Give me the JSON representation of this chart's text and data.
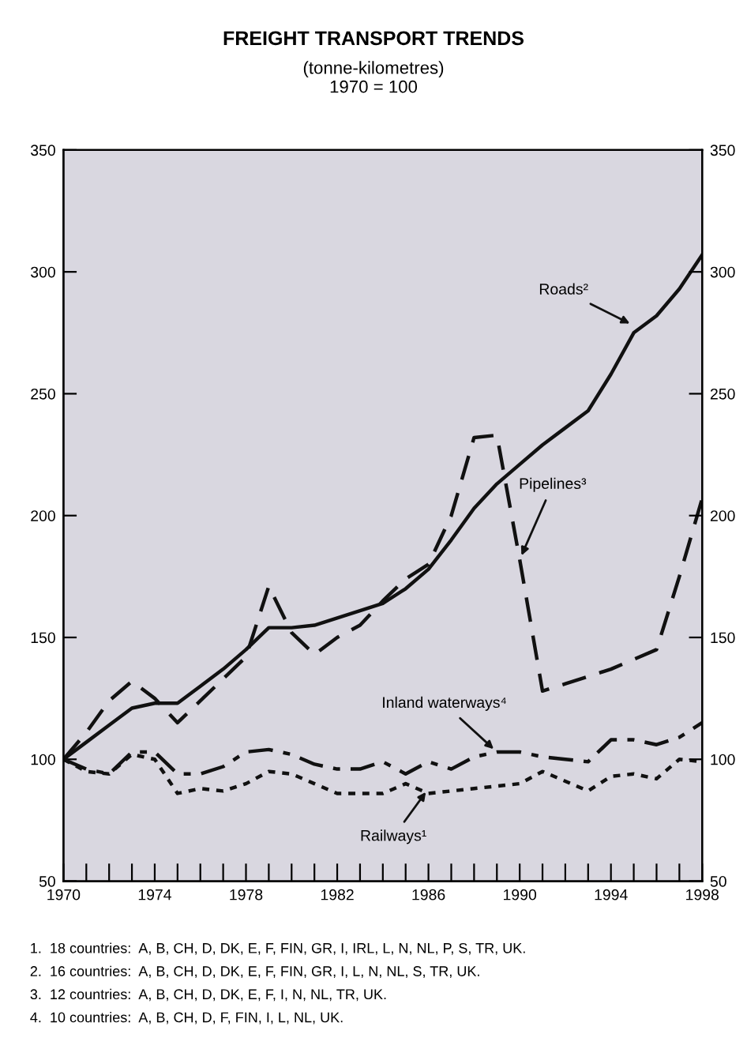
{
  "chart_data": {
    "type": "line",
    "title": "FREIGHT TRANSPORT TRENDS",
    "subtitle": "(tonne-kilometres)\n1970 = 100",
    "x": [
      1970,
      1971,
      1972,
      1973,
      1974,
      1975,
      1976,
      1977,
      1978,
      1979,
      1980,
      1981,
      1982,
      1983,
      1984,
      1985,
      1986,
      1987,
      1988,
      1989,
      1990,
      1991,
      1992,
      1993,
      1994,
      1995,
      1996,
      1997,
      1998
    ],
    "series": [
      {
        "color": "#111111",
        "line_style": "solid",
        "values": [
          100,
          107,
          114,
          121,
          123,
          123,
          130,
          137,
          145,
          154,
          154,
          155,
          158,
          161,
          164,
          170,
          178,
          190,
          203,
          213,
          221,
          229,
          236,
          243,
          258,
          275,
          282,
          293,
          307
        ]
      },
      {
        "color": "#111111",
        "line_style": "dashed",
        "values": [
          100,
          111,
          124,
          132,
          125,
          115,
          124,
          133,
          142,
          171,
          152,
          143,
          150,
          155,
          165,
          174,
          180,
          200,
          232,
          233,
          182,
          128,
          131,
          134,
          137,
          141,
          145,
          175,
          207
        ]
      },
      {
        "color": "#111111",
        "line_style": "dashdot",
        "values": [
          100,
          96,
          94,
          103,
          103,
          94,
          94,
          97,
          103,
          104,
          102,
          98,
          96,
          96,
          99,
          94,
          99,
          96,
          101,
          103,
          103,
          101,
          100,
          99,
          108,
          108,
          106,
          109,
          115
        ]
      },
      {
        "color": "#111111",
        "line_style": "dotted",
        "values": [
          100,
          95,
          94,
          102,
          100,
          86,
          88,
          87,
          90,
          95,
          94,
          90,
          86,
          86,
          86,
          90,
          86,
          87,
          88,
          89,
          90,
          95,
          91,
          87,
          93,
          94,
          92,
          100,
          99
        ]
      }
    ],
    "xlim": [
      1970,
      1998
    ],
    "xticks": [
      1970,
      {
        "value": 1971,
        "label": null
      },
      {
        "value": 1972,
        "label": null
      },
      {
        "value": 1973,
        "label": null
      },
      1974,
      {
        "value": 1975,
        "label": null
      },
      {
        "value": 1976,
        "label": null
      },
      {
        "value": 1977,
        "label": null
      },
      1978,
      {
        "value": 1979,
        "label": null
      },
      {
        "value": 1980,
        "label": null
      },
      {
        "value": 1981,
        "label": null
      },
      1982,
      {
        "value": 1983,
        "label": null
      },
      {
        "value": 1984,
        "label": null
      },
      {
        "value": 1985,
        "label": null
      },
      1986,
      {
        "value": 1987,
        "label": null
      },
      {
        "value": 1988,
        "label": null
      },
      {
        "value": 1989,
        "label": null
      },
      1990,
      {
        "value": 1991,
        "label": null
      },
      {
        "value": 1992,
        "label": null
      },
      {
        "value": 1993,
        "label": null
      },
      1994,
      {
        "value": 1995,
        "label": null
      },
      {
        "value": 1996,
        "label": null
      },
      {
        "value": 1997,
        "label": null
      },
      1998
    ],
    "ylim": [
      50,
      350
    ],
    "yticks": [
      50,
      100,
      150,
      200,
      250,
      300,
      350
    ],
    "y2lim": [
      50,
      350
    ],
    "y2ticks": [
      50,
      100,
      150,
      200,
      250,
      300,
      350
    ],
    "grid": false,
    "legend": false,
    "marker": "none",
    "annotations": [
      {
        "text": "Roads²",
        "x": 1995,
        "y": 278
      },
      {
        "text": "Pipelines³",
        "x": 1990,
        "y": 182
      },
      {
        "text": "Inland waterways⁴",
        "x": 1989,
        "y": 103
      },
      {
        "text": "Railways¹",
        "x": 1986,
        "y": 88
      },
      "1.  18 countries:  A, B, CH, D, DK, E, F, FIN, GR, I, IRL, L, N, NL, P, S, TR, UK.",
      "2.  16 countries:  A, B, CH, D, DK, E, F, FIN, GR, I, L, N, NL, S, TR, UK.",
      "3.  12 countries:  A, B, CH, D, DK, E, F, I, N, NL, TR, UK.",
      "4.  10 countries:  A, B, CH, D, F, FIN, I, L, NL, UK."
    ]
  }
}
